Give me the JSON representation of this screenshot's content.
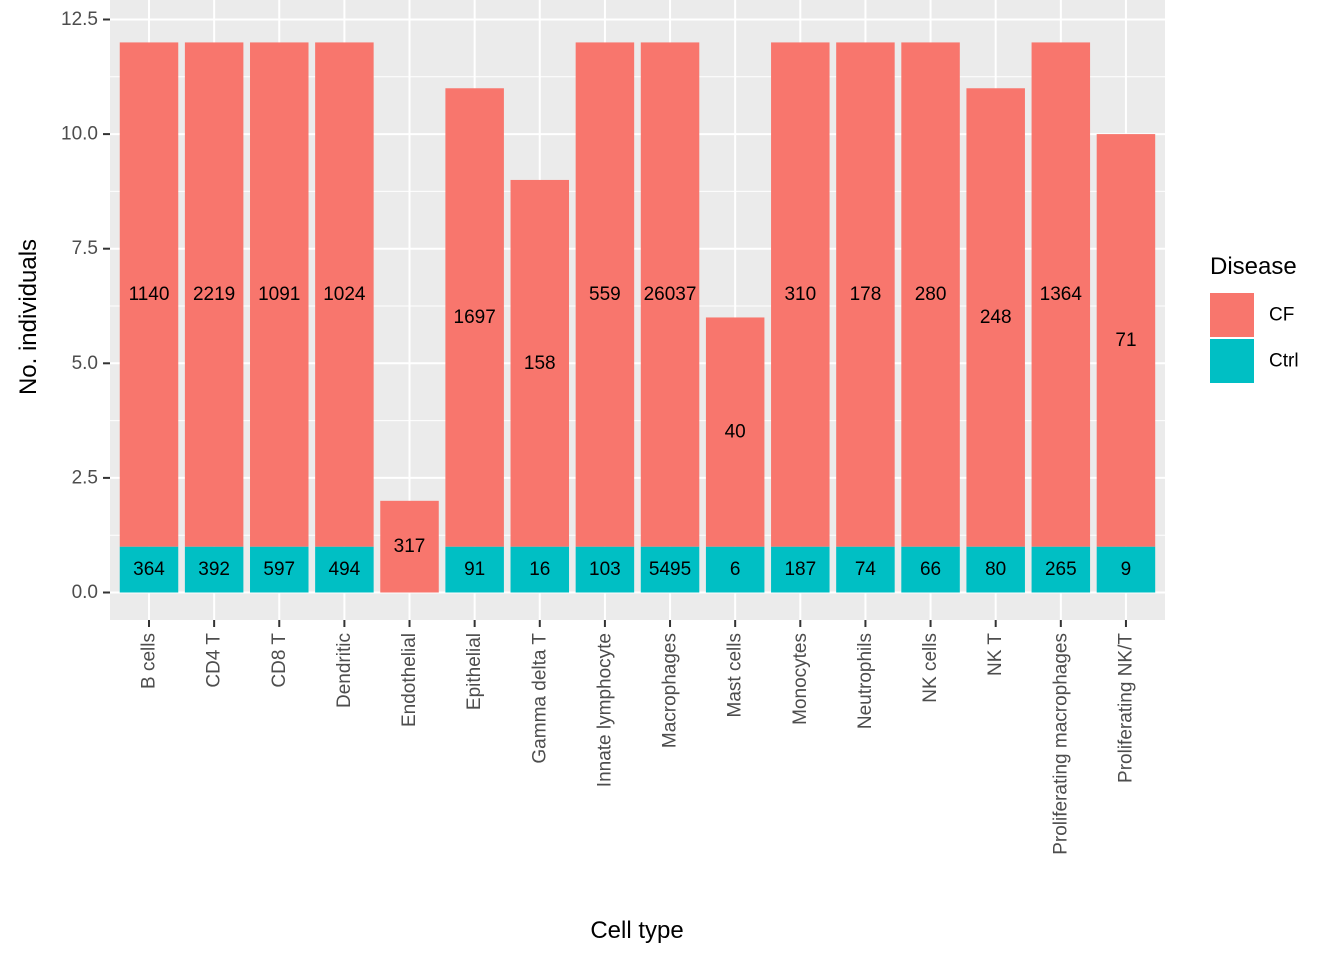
{
  "chart_data": {
    "type": "bar",
    "stacked": true,
    "xlabel": "Cell type",
    "ylabel": "No. individuals",
    "ylim": [
      -0.6,
      12.5
    ],
    "yticks": [
      0.0,
      2.5,
      5.0,
      7.5,
      10.0,
      12.5
    ],
    "ytick_labels": [
      "0.0",
      "2.5",
      "5.0",
      "7.5",
      "10.0",
      "12.5"
    ],
    "grid": true,
    "legend": {
      "title": "Disease",
      "position": "right"
    },
    "categories": [
      "B cells",
      "CD4 T",
      "CD8 T",
      "Dendritic",
      "Endothelial",
      "Epithelial",
      "Gamma delta T",
      "Innate lymphocyte",
      "Macrophages",
      "Mast cells",
      "Monocytes",
      "Neutrophils",
      "NK cells",
      "NK T",
      "Proliferating macrophages",
      "Proliferating NK/T"
    ],
    "series": [
      {
        "name": "CF",
        "color": "#F8766D",
        "values": [
          11,
          11,
          11,
          11,
          2,
          10,
          8,
          11,
          11,
          5,
          11,
          11,
          11,
          10,
          11,
          9
        ],
        "labels": [
          "1140",
          "2219",
          "1091",
          "1024",
          "317",
          "1697",
          "158",
          "559",
          "26037",
          "40",
          "310",
          "178",
          "280",
          "248",
          "1364",
          "71"
        ]
      },
      {
        "name": "Ctrl",
        "color": "#00BFC4",
        "values": [
          1,
          1,
          1,
          1,
          0,
          1,
          1,
          1,
          1,
          1,
          1,
          1,
          1,
          1,
          1,
          1
        ],
        "labels": [
          "364",
          "392",
          "597",
          "494",
          "",
          "91",
          "16",
          "103",
          "5495",
          "6",
          "187",
          "74",
          "66",
          "80",
          "265",
          "9"
        ]
      }
    ]
  }
}
